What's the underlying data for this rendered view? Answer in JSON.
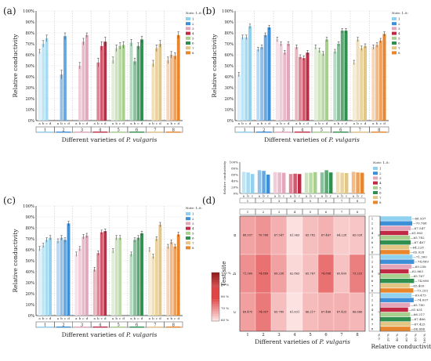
{
  "panel_labels": [
    "(a)",
    "(b)",
    "(c)",
    "(d)"
  ],
  "colors": [
    "#8fd1ee",
    "#3d8fd8",
    "#e3a6bb",
    "#c12a44",
    "#a8cf8e",
    "#2f8f4e",
    "#e3c684",
    "#e8862e"
  ],
  "legend": {
    "title": "Note: 1–8:",
    "items": [
      "1",
      "2",
      "3",
      "4",
      "5",
      "6",
      "7",
      "8"
    ]
  },
  "chart_data": [
    {
      "id": "a",
      "type": "bar",
      "title": "",
      "xlabel": "Different varieties of P. vulgaris",
      "ylabel": "Relative conductivity",
      "ylim": [
        0,
        100
      ],
      "yticks": [
        "0%",
        "10%",
        "20%",
        "30%",
        "40%",
        "50%",
        "60%",
        "70%",
        "80%",
        "90%",
        "100%"
      ],
      "groups": [
        "1",
        "2",
        "3",
        "4",
        "5",
        "6",
        "7",
        "8"
      ],
      "subgroups": [
        "a",
        "b",
        "c",
        "d"
      ],
      "values": [
        [
          63,
          70,
          75,
          0
        ],
        [
          0,
          42,
          77,
          0
        ],
        [
          0,
          50,
          72,
          78
        ],
        [
          0,
          53,
          68,
          72
        ],
        [
          55,
          66,
          68,
          69
        ],
        [
          71,
          54,
          68,
          74
        ],
        [
          0,
          52,
          66,
          70
        ],
        [
          55,
          60,
          59,
          78
        ]
      ],
      "errors": [
        [
          2,
          3,
          3,
          0
        ],
        [
          0,
          4,
          3,
          0
        ],
        [
          0,
          3,
          3,
          2
        ],
        [
          0,
          4,
          4,
          4
        ],
        [
          3,
          3,
          3,
          3
        ],
        [
          3,
          3,
          3,
          3
        ],
        [
          0,
          3,
          3,
          3
        ],
        [
          3,
          3,
          3,
          3
        ]
      ]
    },
    {
      "id": "b",
      "type": "bar",
      "title": "",
      "xlabel": "Different varieties of P. vulgaris",
      "ylabel": "Relative conductivity",
      "ylim": [
        0,
        100
      ],
      "yticks": [
        "0%",
        "10%",
        "20%",
        "30%",
        "40%",
        "50%",
        "60%",
        "70%",
        "80%",
        "90%",
        "100%"
      ],
      "groups": [
        "1",
        "2",
        "3",
        "4",
        "5",
        "6",
        "7",
        "8"
      ],
      "subgroups": [
        "a",
        "b",
        "c",
        "d"
      ],
      "values": [
        [
          42,
          76,
          76,
          86
        ],
        [
          65,
          67,
          78,
          85
        ],
        [
          74,
          70,
          62,
          70
        ],
        [
          67,
          58,
          57,
          62
        ],
        [
          67,
          64,
          61,
          74
        ],
        [
          63,
          70,
          82,
          82
        ],
        [
          53,
          74,
          66,
          68
        ],
        [
          67,
          69,
          73,
          79
        ]
      ],
      "errors": [
        [
          2,
          2,
          2,
          2
        ],
        [
          2,
          2,
          2,
          2
        ],
        [
          2,
          2,
          2,
          2
        ],
        [
          2,
          2,
          2,
          2
        ],
        [
          2,
          2,
          2,
          2
        ],
        [
          2,
          2,
          2,
          2
        ],
        [
          2,
          2,
          2,
          2
        ],
        [
          2,
          2,
          2,
          2
        ]
      ]
    },
    {
      "id": "c",
      "type": "bar",
      "title": "",
      "xlabel": "Different varieties of P. vulgaris",
      "ylabel": "Relative conductivity",
      "ylim": [
        0,
        100
      ],
      "yticks": [
        "0%",
        "10%",
        "20%",
        "30%",
        "40%",
        "50%",
        "60%",
        "70%",
        "80%",
        "90%",
        "100%"
      ],
      "groups": [
        "1",
        "2",
        "3",
        "4",
        "5",
        "6",
        "7",
        "8"
      ],
      "subgroups": [
        "a",
        "b",
        "c",
        "d"
      ],
      "values": [
        [
          61,
          64,
          69,
          71
        ],
        [
          68,
          71,
          69,
          84
        ],
        [
          56,
          61,
          72,
          73
        ],
        [
          42,
          57,
          76,
          77
        ],
        [
          59,
          71,
          71,
          0
        ],
        [
          56,
          69,
          71,
          75
        ],
        [
          60,
          54,
          70,
          83
        ],
        [
          63,
          67,
          63,
          74
        ]
      ],
      "errors": [
        [
          2,
          2,
          2,
          2
        ],
        [
          2,
          2,
          2,
          2
        ],
        [
          2,
          2,
          2,
          2
        ],
        [
          2,
          2,
          2,
          2
        ],
        [
          2,
          2,
          2,
          0
        ],
        [
          2,
          2,
          2,
          2
        ],
        [
          2,
          2,
          2,
          2
        ],
        [
          2,
          2,
          2,
          2
        ]
      ]
    },
    {
      "id": "d-top",
      "type": "bar",
      "title": "",
      "ylabel": "Relative conductivity",
      "ylim": [
        0,
        100
      ],
      "yticks": [
        "0%",
        "10%",
        "20%",
        "30%",
        "40%",
        "50%",
        "60%",
        "70%",
        "80%",
        "90%",
        "100%"
      ],
      "groups": [
        "1",
        "2",
        "3",
        "4",
        "5",
        "6",
        "7",
        "8"
      ],
      "subgroups": [
        "a",
        "b",
        "c"
      ],
      "values": [
        [
          69,
          67,
          62
        ],
        [
          74,
          72,
          60
        ],
        [
          68,
          67,
          66
        ],
        [
          62,
          63,
          62
        ],
        [
          66,
          66,
          68
        ],
        [
          67,
          74,
          67
        ],
        [
          68,
          66,
          65
        ],
        [
          69,
          67,
          66
        ]
      ]
    },
    {
      "id": "d-heatmap",
      "type": "heatmap",
      "title": "",
      "xlabel": "Different varieties of P. vulgaris",
      "ylabel": "Test site",
      "x": [
        "1",
        "2",
        "3",
        "4",
        "5",
        "6",
        "7",
        "8"
      ],
      "y": [
        "a",
        "b",
        "c"
      ],
      "value_labels": [
        [
          "68.937",
          "70.768",
          "67.547",
          "61.963",
          "65.782",
          "67.467",
          "64.228",
          "65.028"
        ],
        [
          "71.300",
          "74.889",
          "69.258",
          "62.863",
          "65.767",
          "74.898",
          "65.409",
          "73.253"
        ],
        [
          "69.475",
          "74.007",
          "65.780",
          "61.631",
          "66.217",
          "67.466",
          "67.425",
          "66.666"
        ]
      ],
      "values": [
        [
          68.937,
          70.768,
          67.547,
          61.963,
          65.782,
          67.467,
          64.228,
          65.028
        ],
        [
          71.3,
          74.889,
          69.258,
          62.863,
          65.767,
          74.898,
          65.409,
          73.253
        ],
        [
          69.475,
          74.007,
          65.78,
          61.631,
          66.217,
          67.466,
          67.425,
          66.666
        ]
      ],
      "scale": {
        "min": 60,
        "max": 100,
        "ticks": [
          "100 %",
          "90 %",
          "80 %",
          "70 %",
          "60 %"
        ]
      }
    },
    {
      "id": "d-side",
      "type": "bar",
      "orientation": "horizontal",
      "title": "",
      "xlabel": "Relative conductivity",
      "xlim": [
        0,
        100
      ],
      "xticks": [
        "0 %",
        "20 %",
        "40 %",
        "60 %",
        "80 %",
        "100 %"
      ],
      "sites": [
        "a",
        "b",
        "c"
      ],
      "categories": [
        "1",
        "2",
        "3",
        "4",
        "5",
        "6",
        "7",
        "8"
      ],
      "value_labels": [
        [
          "68.937",
          "70.768",
          "67.547",
          "61.963",
          "65.782",
          "67.467",
          "64.228",
          "65.028"
        ],
        [
          "71.300",
          "74.889",
          "69.258",
          "62.863",
          "65.767",
          "74.898",
          "65.409",
          "73.253"
        ],
        [
          "69.475",
          "74.007",
          "65.780",
          "61.631",
          "66.217",
          "67.466",
          "67.425",
          "66.666"
        ]
      ],
      "values": [
        [
          68.937,
          70.768,
          67.547,
          61.963,
          65.782,
          67.467,
          64.228,
          65.028
        ],
        [
          71.3,
          74.889,
          69.258,
          62.863,
          65.767,
          74.898,
          65.409,
          73.253
        ],
        [
          69.475,
          74.007,
          65.78,
          61.631,
          66.217,
          67.466,
          67.425,
          66.666
        ]
      ]
    }
  ]
}
